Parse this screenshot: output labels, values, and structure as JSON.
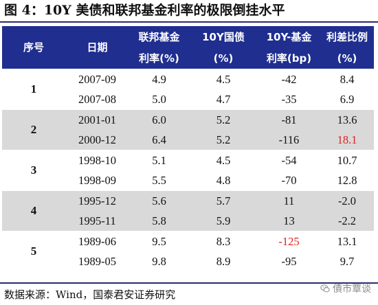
{
  "figure": {
    "title": "图 4：10Y 美债和联邦基金利率的极限倒挂水平",
    "source": "数据来源：Wind，国泰君安证券研究",
    "watermark": "債市覃谈"
  },
  "table": {
    "headers": {
      "row1": [
        "序号",
        "日期",
        "联邦基金",
        "10Y国债",
        "10Y-基金",
        "利差比例"
      ],
      "row2": [
        "",
        "",
        "利率(%)",
        "(%)",
        "利率(bp)",
        "(%)"
      ]
    },
    "groups": [
      {
        "index": "1",
        "rows": [
          {
            "date": "2007-09",
            "fed_rate": "4.9",
            "y10": "4.5",
            "spread_bp": "-42",
            "ratio": "8.4"
          },
          {
            "date": "2007-08",
            "fed_rate": "5.0",
            "y10": "4.7",
            "spread_bp": "-35",
            "ratio": "6.9"
          }
        ]
      },
      {
        "index": "2",
        "rows": [
          {
            "date": "2001-01",
            "fed_rate": "6.0",
            "y10": "5.2",
            "spread_bp": "-81",
            "ratio": "13.6"
          },
          {
            "date": "2000-12",
            "fed_rate": "6.4",
            "y10": "5.2",
            "spread_bp": "-116",
            "ratio": "18.1"
          }
        ]
      },
      {
        "index": "3",
        "rows": [
          {
            "date": "1998-10",
            "fed_rate": "5.1",
            "y10": "4.5",
            "spread_bp": "-54",
            "ratio": "10.7"
          },
          {
            "date": "1998-09",
            "fed_rate": "5.5",
            "y10": "4.8",
            "spread_bp": "-70",
            "ratio": "12.8"
          }
        ]
      },
      {
        "index": "4",
        "rows": [
          {
            "date": "1995-12",
            "fed_rate": "5.6",
            "y10": "5.7",
            "spread_bp": "11",
            "ratio": "-2.0"
          },
          {
            "date": "1995-11",
            "fed_rate": "5.8",
            "y10": "5.9",
            "spread_bp": "13",
            "ratio": "-2.2"
          }
        ]
      },
      {
        "index": "5",
        "rows": [
          {
            "date": "1989-06",
            "fed_rate": "9.5",
            "y10": "8.3",
            "spread_bp": "-125",
            "ratio": "13.1"
          },
          {
            "date": "1989-05",
            "fed_rate": "9.8",
            "y10": "8.9",
            "spread_bp": "-95",
            "ratio": "9.7"
          }
        ]
      }
    ]
  },
  "colors": {
    "header_bg": "#1f2e8f",
    "header_text": "#ffffff",
    "band_gray": "#d9d9d9",
    "highlight_red": "#e02020",
    "rule": "#2a2a6e"
  },
  "icons": {
    "watermark": "wechat-icon"
  }
}
